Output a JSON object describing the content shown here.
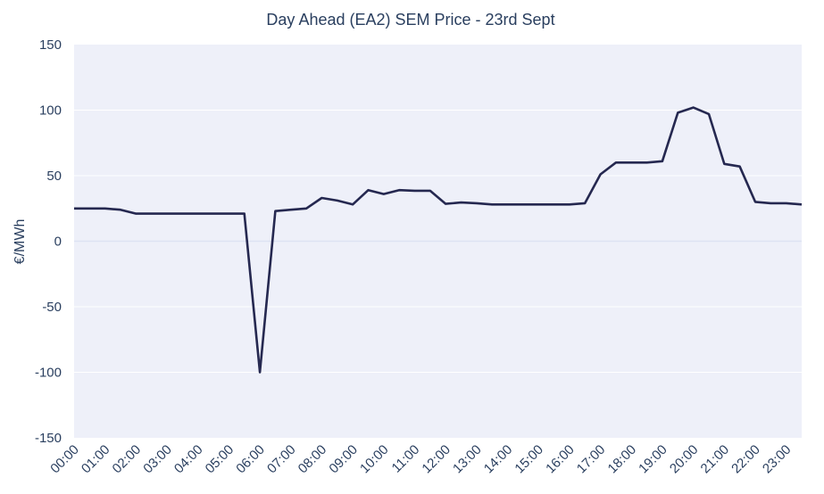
{
  "chart_data": {
    "type": "line",
    "title": "Day Ahead (EA2) SEM Price - 23rd Sept",
    "xlabel": "",
    "ylabel": "€/MWh",
    "ylim": [
      -150,
      150
    ],
    "y_ticks": [
      150,
      100,
      50,
      0,
      -50,
      -100,
      -150
    ],
    "x_tick_labels": [
      "00:00",
      "01:00",
      "02:00",
      "03:00",
      "04:00",
      "05:00",
      "06:00",
      "07:00",
      "08:00",
      "09:00",
      "10:00",
      "11:00",
      "12:00",
      "13:00",
      "14:00",
      "15:00",
      "16:00",
      "17:00",
      "18:00",
      "19:00",
      "20:00",
      "21:00",
      "22:00",
      "23:00"
    ],
    "grid": true,
    "colors": {
      "line": "#252850",
      "plot_bg": "#eef0f9",
      "grid": "#ffffff",
      "zero_line": "#dde3f3",
      "text": "#2a3f5f"
    },
    "series": [
      {
        "x": [
          "00:00",
          "00:30",
          "01:00",
          "01:30",
          "02:00",
          "02:30",
          "03:00",
          "03:30",
          "04:00",
          "04:30",
          "05:00",
          "05:30",
          "06:00",
          "06:30",
          "07:00",
          "07:30",
          "08:00",
          "08:30",
          "09:00",
          "09:30",
          "10:00",
          "10:30",
          "11:00",
          "11:30",
          "12:00",
          "12:30",
          "13:00",
          "13:30",
          "14:00",
          "14:30",
          "15:00",
          "15:30",
          "16:00",
          "16:30",
          "17:00",
          "17:30",
          "18:00",
          "18:30",
          "19:00",
          "19:30",
          "20:00",
          "20:30",
          "21:00",
          "21:30",
          "22:00",
          "22:30",
          "23:00",
          "23:30"
        ],
        "values": [
          25,
          25,
          25,
          24,
          21,
          21,
          21,
          21,
          21,
          21,
          21,
          21,
          -100,
          23,
          24,
          25,
          33,
          31,
          28,
          39,
          36,
          39,
          38.5,
          38.5,
          28.5,
          29.5,
          29,
          28,
          28,
          28,
          28,
          28,
          28,
          29,
          51,
          60,
          60,
          60,
          61,
          98,
          102,
          97,
          59,
          57,
          30,
          29,
          29,
          28
        ]
      }
    ]
  }
}
